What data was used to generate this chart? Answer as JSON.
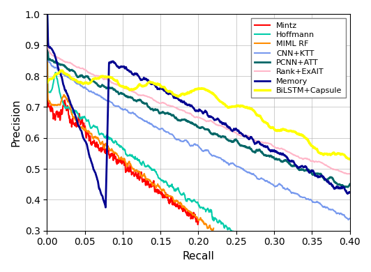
{
  "title": "",
  "xlabel": "Recall",
  "ylabel": "Precision",
  "xlim": [
    0.0,
    0.4
  ],
  "ylim": [
    0.3,
    1.0
  ],
  "xticks": [
    0.0,
    0.05,
    0.1,
    0.15,
    0.2,
    0.25,
    0.3,
    0.35,
    0.4
  ],
  "yticks": [
    0.3,
    0.4,
    0.5,
    0.6,
    0.7,
    0.8,
    0.9,
    1.0
  ],
  "legend": [
    "Mintz",
    "Hoffmann",
    "MIMLRF",
    "CNN+ΚTT",
    "PCNN+ATT",
    "Rank+ExAIΤ",
    "Memory",
    "BiLSTM+Capsule"
  ],
  "legend_display": [
    "Mintz",
    "Hoffmann",
    "MIML RF",
    "CNN+ΚTT",
    "PCNN+ATT",
    "Rank+ExAIΤ",
    "Memory",
    "BiLSTM+Capsule"
  ],
  "colors": [
    "#FF0000",
    "#00CCAA",
    "#FF8C00",
    "#7799EE",
    "#006666",
    "#FFB6C8",
    "#000090",
    "#FFFF00"
  ],
  "linewidths": [
    1.5,
    1.5,
    1.5,
    1.5,
    2.0,
    1.5,
    2.0,
    2.5
  ],
  "background_color": "#FFFFFF",
  "grid": true
}
